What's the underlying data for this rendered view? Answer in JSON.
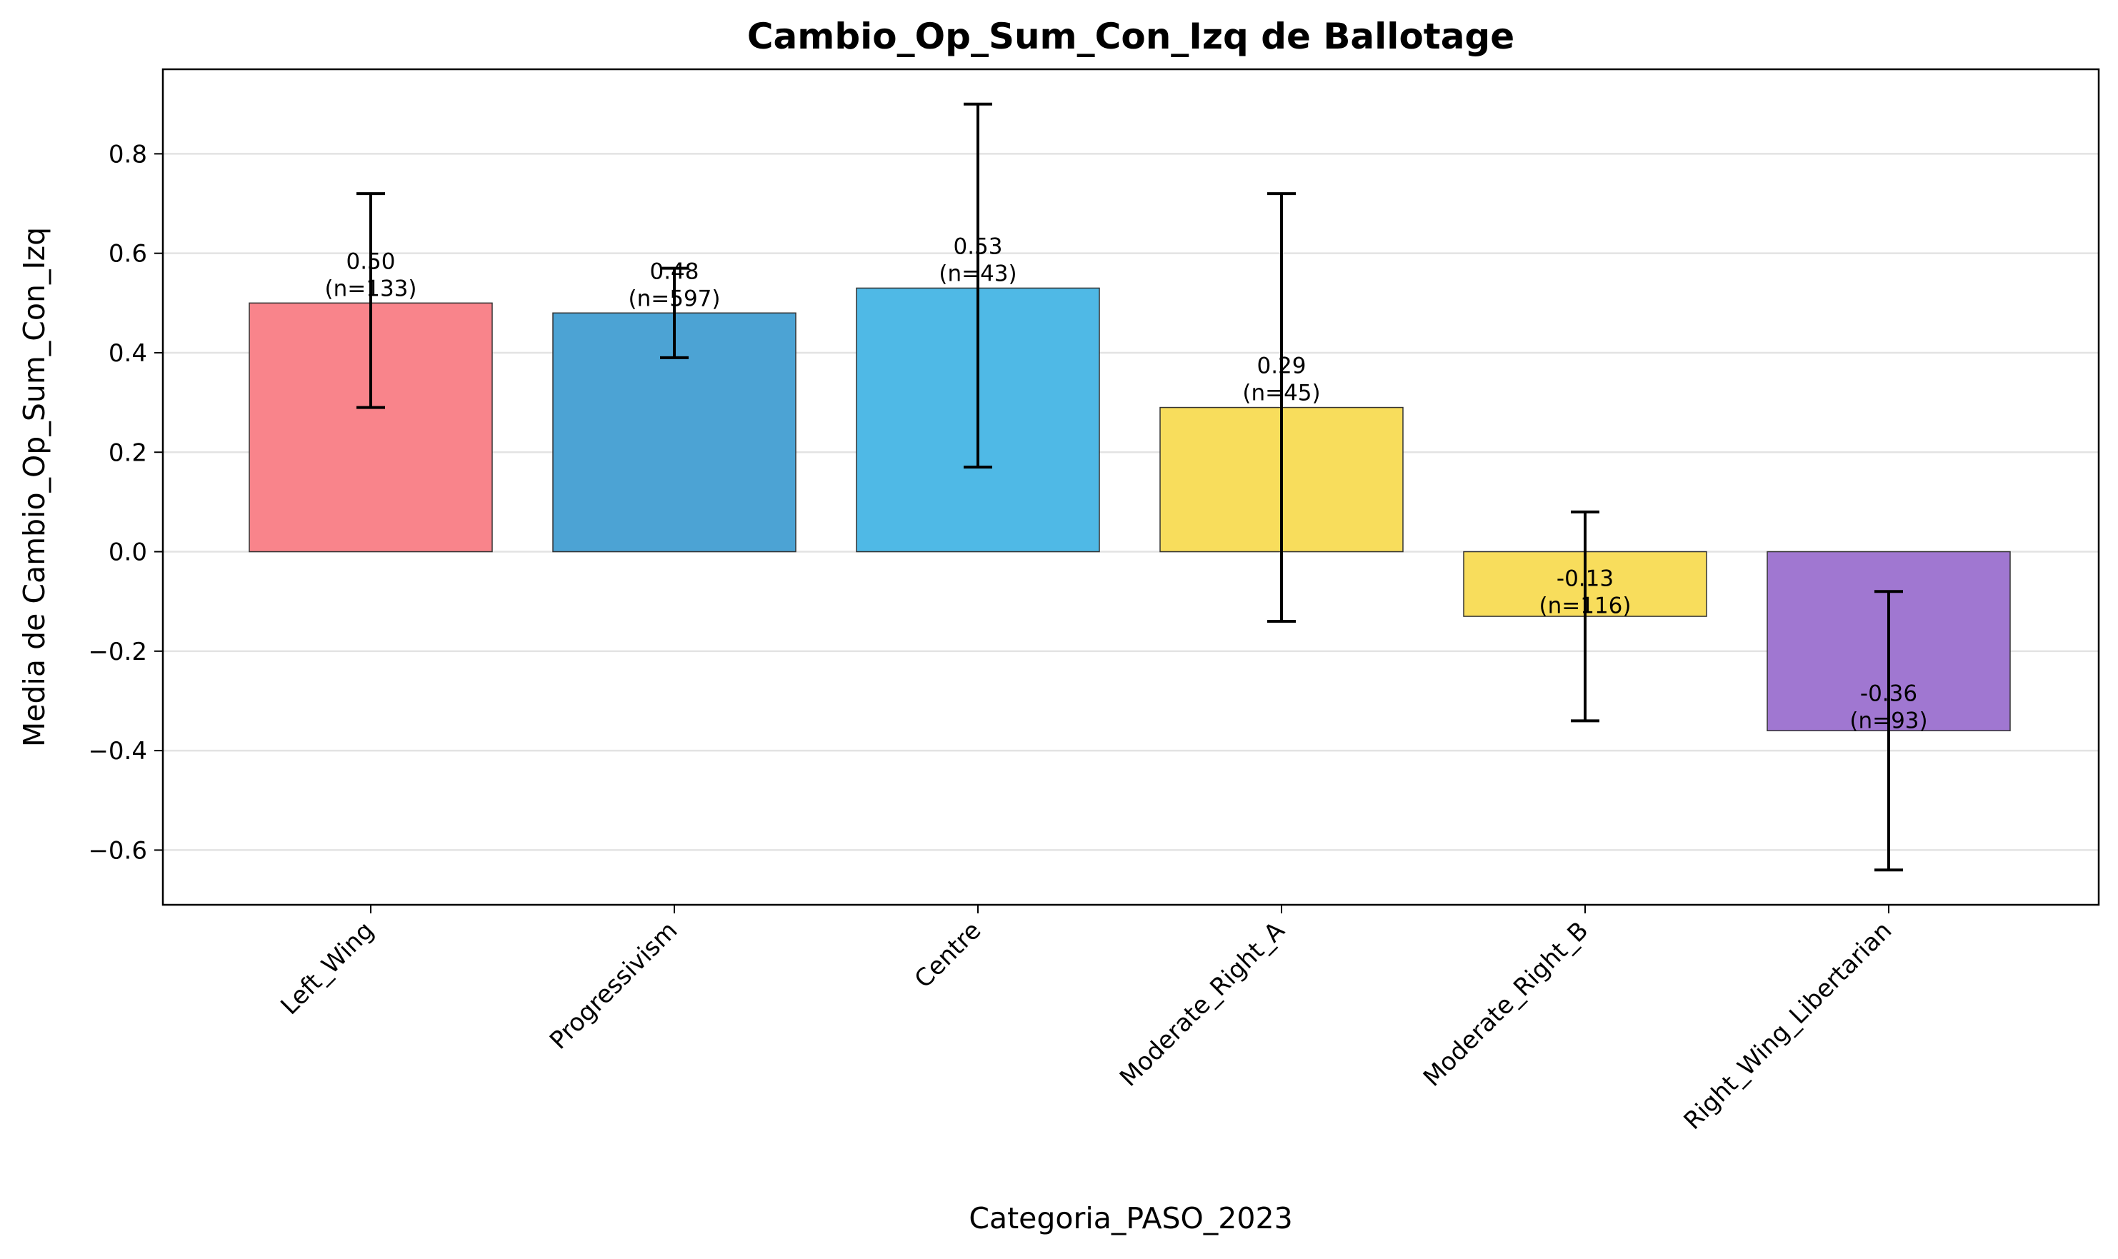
{
  "chart_data": {
    "type": "bar",
    "title": "Cambio_Op_Sum_Con_Izq de Ballotage",
    "xlabel": "Categoria_PASO_2023",
    "ylabel": "Media de Cambio_Op_Sum_Con_Izq",
    "categories": [
      "Left_Wing",
      "Progressivism",
      "Centre",
      "Moderate_Right_A",
      "Moderate_Right_B",
      "Right_Wing_Libertarian"
    ],
    "values": [
      0.5,
      0.48,
      0.53,
      0.29,
      -0.13,
      -0.36
    ],
    "error_low": [
      0.29,
      0.39,
      0.17,
      -0.14,
      -0.34,
      -0.64
    ],
    "error_high": [
      0.72,
      0.57,
      0.9,
      0.72,
      0.08,
      -0.08
    ],
    "n": [
      133,
      597,
      43,
      45,
      116,
      93
    ],
    "value_labels": [
      "0.50",
      "0.48",
      "0.53",
      "0.29",
      "-0.13",
      "-0.36"
    ],
    "n_labels": [
      "(n=133)",
      "(n=597)",
      "(n=43)",
      "(n=45)",
      "(n=116)",
      "(n=93)"
    ],
    "colors": [
      "#f9848b",
      "#4ca3d4",
      "#4fb9e6",
      "#f8dd5c",
      "#f8dd5c",
      "#a077d1"
    ],
    "yticks": [
      -0.6,
      -0.4,
      -0.2,
      0.0,
      0.2,
      0.4,
      0.6,
      0.8
    ],
    "ytick_labels": [
      "−0.6",
      "−0.4",
      "−0.2",
      "0.0",
      "0.2",
      "0.4",
      "0.6",
      "0.8"
    ],
    "ylim": [
      -0.71,
      0.97
    ],
    "grid": "horizontal",
    "legend": "none"
  }
}
